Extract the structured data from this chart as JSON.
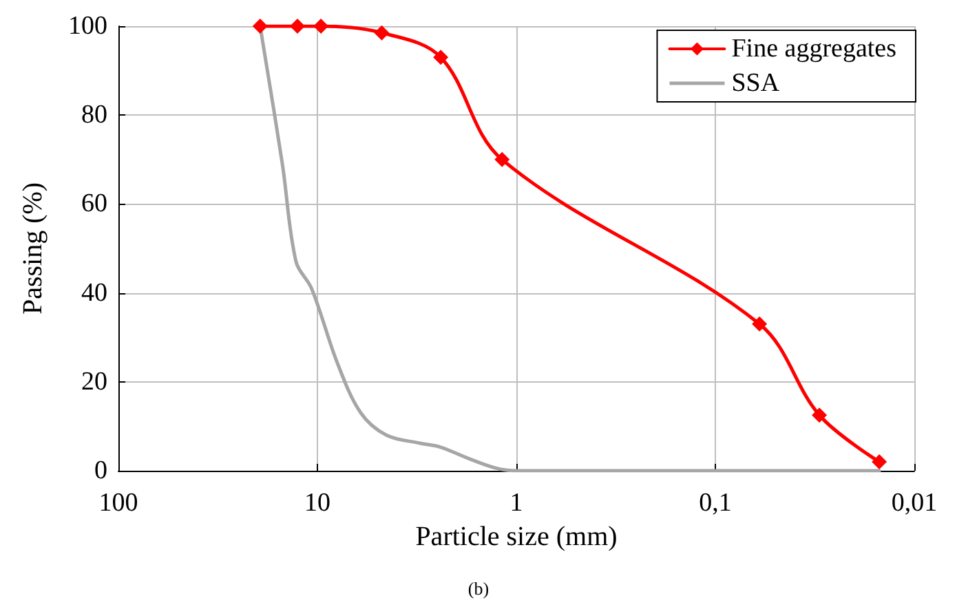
{
  "chart_data": {
    "type": "line",
    "xlabel": "Particle size (mm)",
    "ylabel": "Passing (%)",
    "annotations": [
      "(b)"
    ],
    "xlim": [
      100,
      0.01
    ],
    "xticks": [
      100,
      10,
      1,
      {
        "value": 0.1,
        "label": "0,1"
      },
      {
        "value": 0.01,
        "label": "0,01"
      }
    ],
    "ylim": [
      0,
      100
    ],
    "yticks": [
      0,
      20,
      40,
      60,
      80,
      100
    ],
    "log": "x",
    "grid": true,
    "legend": "top right",
    "line_style": "solid",
    "series": [
      {
        "name": "Fine aggregates",
        "color": "#ff0000",
        "marker": "diamond",
        "x": [
          19.4,
          12.6,
          9.6,
          4.75,
          2.4,
          1.18,
          0.06,
          0.03,
          0.015
        ],
        "values": [
          100,
          100,
          100,
          98.5,
          93,
          70,
          33,
          12.5,
          2
        ]
      },
      {
        "name": "SSA",
        "color": "#a6a6a6",
        "marker": "none",
        "x": [
          19.4,
          15,
          12.8,
          10.7,
          7.9,
          6.05,
          4.5,
          3.05,
          2.4,
          1.75,
          1.27,
          1,
          0.1,
          0.015
        ],
        "values": [
          100,
          69,
          47,
          41,
          24,
          13,
          8,
          6.2,
          5.3,
          2.8,
          0.6,
          0,
          0,
          0
        ]
      }
    ]
  }
}
